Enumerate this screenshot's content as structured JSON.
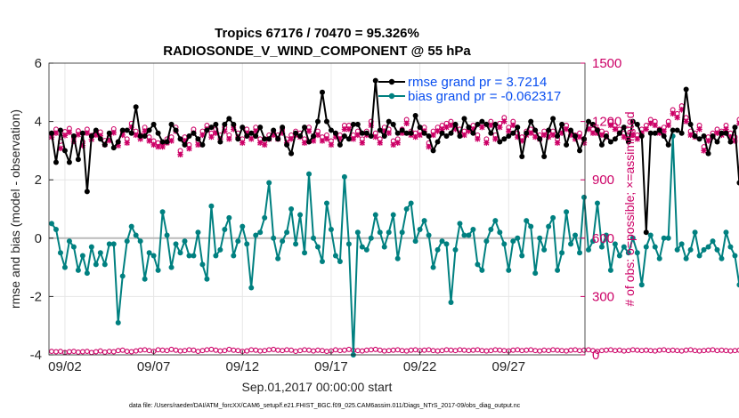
{
  "chart_data": {
    "type": "line",
    "title_line1": "Tropics 67176 / 70470 = 95.326%",
    "title_line2": "RADIOSONDE_V_WIND_COMPONENT @ 55 hPa",
    "xlabel": "Sep.01,2017 00:00:00 start",
    "ylabel_left": "rmse and bias (model - observation)",
    "ylabel_right": "# of obs: o=possible; ×=assimilated",
    "footer": "data file: /Users/raeder/DAI/ATM_forcXX/CAM6_setup/f.e21.FHIST_BGC.f09_025.CAM6assim.011/Diags_NTrS_2017-09/obs_diag_output.nc",
    "x_range_days": [
      0.6,
      30.8
    ],
    "ylim_left": [
      -4,
      6
    ],
    "ylim_right": [
      0,
      1500
    ],
    "x_ticks": [
      {
        "day": 1.5,
        "label": "09/02"
      },
      {
        "day": 6.5,
        "label": "09/07"
      },
      {
        "day": 11.5,
        "label": "09/12"
      },
      {
        "day": 16.5,
        "label": "09/17"
      },
      {
        "day": 21.5,
        "label": "09/22"
      },
      {
        "day": 26.5,
        "label": "09/27"
      }
    ],
    "y_ticks_left": [
      -4,
      -2,
      0,
      2,
      4,
      6
    ],
    "y_ticks_right": [
      0,
      300,
      600,
      900,
      1200,
      1500
    ],
    "x_start_day": 0.75,
    "x_step_day": 0.25,
    "series": [
      {
        "name": "rmse grand pr = 3.7214",
        "color": "#000000",
        "marker": "*",
        "values": [
          3.6,
          2.6,
          3.7,
          3.0,
          2.6,
          3.5,
          2.7,
          3.6,
          1.6,
          3.5,
          3.7,
          3.4,
          3.2,
          3.6,
          3.1,
          3.3,
          3.7,
          3.7,
          3.6,
          4.5,
          3.5,
          3.5,
          3.7,
          3.9,
          3.6,
          3.3,
          3.3,
          3.9,
          3.7,
          3.4,
          3.2,
          3.5,
          3.6,
          3.4,
          3.2,
          3.7,
          3.8,
          3.9,
          3.3,
          3.9,
          4.1,
          3.9,
          3.4,
          3.8,
          3.5,
          3.6,
          3.5,
          3.8,
          3.4,
          3.4,
          3.7,
          3.4,
          3.8,
          3.2,
          2.9,
          3.6,
          3.5,
          3.8,
          3.3,
          3.5,
          4.0,
          5.0,
          4.0,
          3.7,
          3.6,
          3.2,
          3.5,
          3.4,
          3.9,
          3.9,
          3.6,
          3.6,
          3.5,
          5.4,
          3.7,
          3.5,
          4.0,
          3.9,
          3.6,
          3.7,
          3.6,
          3.6,
          4.2,
          3.8,
          3.6,
          3.5,
          3.0,
          3.3,
          3.6,
          3.5,
          3.6,
          3.9,
          3.5,
          4.1,
          3.8,
          3.6,
          3.9,
          4.0,
          3.9,
          3.6,
          3.9,
          3.3,
          3.4,
          3.5,
          3.6,
          3.8,
          2.8,
          3.6,
          4.0,
          3.7,
          3.4,
          2.8,
          3.7,
          4.1,
          3.5,
          3.9,
          3.2,
          3.7,
          3.5,
          3.0,
          3.4,
          4.0,
          3.9,
          3.7,
          3.2,
          3.5,
          3.3,
          3.4,
          3.6,
          3.8,
          3.3,
          4.0,
          3.9,
          3.5,
          0.2,
          3.6,
          3.6,
          3.7,
          3.5,
          3.2,
          3.7,
          3.7,
          3.6,
          5.1,
          3.9,
          3.5,
          3.4,
          3.5,
          2.9,
          3.5,
          3.3,
          3.6,
          3.6,
          3.3,
          3.8,
          1.9,
          3.5,
          3.9,
          4.5,
          4.6,
          3.6,
          3.6
        ]
      },
      {
        "name": "bias grand pr = -0.062317",
        "color": "#008080",
        "marker": "*",
        "values": [
          0.5,
          0.3,
          -0.5,
          -1.0,
          -0.1,
          -0.3,
          -1.1,
          -0.6,
          -1.2,
          -0.3,
          -0.9,
          -0.5,
          -0.9,
          -0.2,
          -0.2,
          -2.9,
          -1.3,
          -0.1,
          0.4,
          0.1,
          -0.1,
          -1.4,
          -0.5,
          -0.6,
          -1.1,
          0.9,
          0.1,
          -1.0,
          -0.2,
          -0.5,
          -0.1,
          -0.6,
          -0.6,
          0.2,
          -0.9,
          -1.4,
          1.1,
          -0.6,
          -0.4,
          0.3,
          0.7,
          -0.6,
          -0.1,
          0.4,
          -0.2,
          -1.7,
          0.1,
          0.2,
          0.7,
          1.9,
          0.0,
          -0.7,
          -0.1,
          0.2,
          1.0,
          -0.2,
          0.8,
          -0.5,
          2.2,
          0.0,
          -0.3,
          -0.8,
          1.2,
          0.3,
          -0.6,
          -0.8,
          2.1,
          -0.2,
          -4.0,
          0.2,
          -0.3,
          -0.4,
          0.0,
          0.8,
          0.2,
          -0.3,
          0.2,
          0.8,
          -0.7,
          0.2,
          1.0,
          1.2,
          -0.1,
          0.3,
          0.6,
          0.1,
          -1.0,
          -0.4,
          -0.1,
          -0.2,
          -2.2,
          -0.4,
          0.5,
          0.1,
          0.1,
          0.3,
          -0.9,
          -1.1,
          -0.1,
          0.3,
          0.6,
          0.2,
          -0.2,
          -1.1,
          -0.1,
          0.0,
          -0.6,
          0.6,
          0.4,
          -1.2,
          0.0,
          -0.4,
          0.4,
          0.7,
          -1.1,
          -0.5,
          0.9,
          -0.2,
          0.1,
          -0.5,
          1.4,
          -0.4,
          -0.1,
          1.2,
          -0.3,
          0.1,
          -1.1,
          -0.2,
          -0.6,
          -0.3,
          -0.5,
          0.0,
          -0.5,
          -1.6,
          -0.3,
          0.1,
          -0.3,
          -0.7,
          0.0,
          0.0,
          3.5,
          -0.4,
          -0.2,
          -0.7,
          -0.4,
          0.2,
          -0.6,
          -0.4,
          -0.3,
          -0.1,
          -0.4,
          -0.7,
          0.2,
          -0.3,
          -0.6,
          -1.6,
          0.5,
          1.2
        ]
      },
      {
        "name": "# possible obs",
        "color": "#cc0066",
        "marker": "o",
        "axis": "right",
        "values": [
          1140,
          1160,
          1098,
          1148,
          1164,
          1118,
          1152,
          1096,
          1160,
          1128,
          1150,
          1146,
          1102,
          1122,
          1162,
          1096,
          1150,
          1110,
          1190,
          1150,
          1130,
          1170,
          1120,
          1100,
          1090,
          1090,
          1110,
          1120,
          1170,
          1050,
          1120,
          1080,
          1160,
          1100,
          1150,
          1180,
          1140,
          1160,
          1130,
          1170,
          1130,
          1180,
          1140,
          1110,
          1160,
          1130,
          1170,
          1110,
          1100,
          1130,
          1150,
          1130,
          1160,
          1110,
          1130,
          1150,
          1140,
          1110,
          1170,
          1120,
          1150,
          1120,
          1130,
          1100,
          1140,
          1130,
          1180,
          1180,
          1130,
          1150,
          1110,
          1150,
          1200,
          1140,
          1110,
          1170,
          1160,
          1100,
          1110,
          1160,
          1210,
          1150,
          1140,
          1150,
          1170,
          1090,
          1150,
          1170,
          1180,
          1190,
          1200,
          1180,
          1160,
          1150,
          1170,
          1180,
          1130,
          1190,
          1110,
          1200,
          1130,
          1190,
          1220,
          1170,
          1200,
          1140,
          1120,
          1150,
          1160,
          1140,
          1130,
          1150,
          1140,
          1150,
          1110,
          1160,
          1180,
          1150,
          1130,
          1140,
          1110,
          1180,
          1160,
          1160,
          1150,
          1140,
          1200,
          1180,
          1160,
          1140,
          1130,
          1150,
          1130,
          1160,
          1180,
          1210,
          1200,
          1160,
          1170,
          1200,
          1260,
          1240,
          1280,
          1220,
          1150,
          1140,
          1180,
          1070,
          1120,
          1140,
          1160,
          1150,
          1180,
          1140,
          1120,
          1210,
          1200,
          1180,
          1150,
          1150
        ]
      },
      {
        "name": "# assimilated obs",
        "color": "#cc0066",
        "marker": "x",
        "axis": "right",
        "values": [
          1120,
          1140,
          1062,
          1128,
          1144,
          1098,
          1132,
          1076,
          1140,
          1108,
          1130,
          1126,
          1082,
          1102,
          1142,
          1076,
          1130,
          1090,
          1170,
          1130,
          1110,
          1150,
          1100,
          1080,
          1070,
          1070,
          1090,
          1100,
          1150,
          1030,
          1100,
          1060,
          1140,
          1080,
          1130,
          1160,
          1120,
          1140,
          1110,
          1150,
          1110,
          1160,
          1120,
          1090,
          1140,
          1110,
          1150,
          1090,
          1080,
          1110,
          1130,
          1110,
          1140,
          1090,
          1110,
          1130,
          1120,
          1090,
          1150,
          1100,
          1130,
          1100,
          1110,
          1080,
          1120,
          1110,
          1160,
          1160,
          1110,
          1130,
          1090,
          1130,
          1180,
          1120,
          1090,
          1150,
          1140,
          1080,
          1090,
          1140,
          1190,
          1130,
          1120,
          1130,
          1150,
          1070,
          1130,
          1150,
          1160,
          1170,
          1180,
          1160,
          1140,
          1130,
          1150,
          1160,
          1110,
          1170,
          1090,
          1180,
          1110,
          1170,
          1200,
          1150,
          1180,
          1120,
          1100,
          1130,
          1140,
          1120,
          1110,
          1130,
          1120,
          1130,
          1090,
          1140,
          1160,
          1130,
          1110,
          1120,
          1090,
          1160,
          1140,
          1140,
          1130,
          1120,
          1180,
          1160,
          1140,
          1120,
          1110,
          1130,
          1110,
          1140,
          1160,
          1190,
          1180,
          1140,
          1150,
          1180,
          1240,
          1220,
          1260,
          1200,
          1130,
          1120,
          1160,
          1050,
          1100,
          1120,
          1140,
          1130,
          1160,
          1120,
          1100,
          1190,
          1180,
          1160,
          1130,
          1130
        ]
      },
      {
        "name": "# possible obs (bias)",
        "color": "#cc0066",
        "marker": "o",
        "axis": "right",
        "values": [
          18,
          16,
          18,
          12,
          16,
          18,
          14,
          16,
          18,
          12,
          16,
          20,
          14,
          18,
          16,
          22,
          24,
          18,
          16,
          20,
          24,
          26,
          22,
          18,
          26,
          24,
          22,
          28,
          24,
          20,
          22,
          26,
          24,
          18,
          22,
          26,
          28,
          24,
          20,
          22,
          28,
          24,
          22,
          18,
          20,
          26,
          24,
          20,
          22,
          26,
          28,
          24,
          22,
          26,
          24,
          18,
          22,
          26,
          24,
          20,
          24,
          22,
          18,
          20,
          26,
          22,
          24,
          28,
          24,
          22,
          20,
          24,
          26,
          28,
          24,
          20,
          22,
          24,
          26,
          22,
          20,
          24,
          26,
          22,
          24,
          26,
          22,
          20,
          22,
          26,
          24,
          22,
          26,
          24,
          22,
          24,
          26,
          22,
          20,
          22,
          26,
          24,
          22,
          20,
          24,
          26,
          22,
          24,
          26,
          22,
          20,
          24,
          22,
          26,
          24,
          22,
          20,
          24,
          26,
          22,
          24,
          26,
          22,
          18,
          22,
          24,
          26,
          22,
          24,
          20,
          22,
          26,
          24,
          22,
          24,
          22,
          20,
          24,
          26,
          22,
          24,
          22,
          20,
          24,
          26,
          22,
          20,
          22,
          24,
          26,
          22,
          24,
          22,
          20,
          22,
          24,
          18,
          16,
          4,
          2
        ]
      }
    ]
  }
}
